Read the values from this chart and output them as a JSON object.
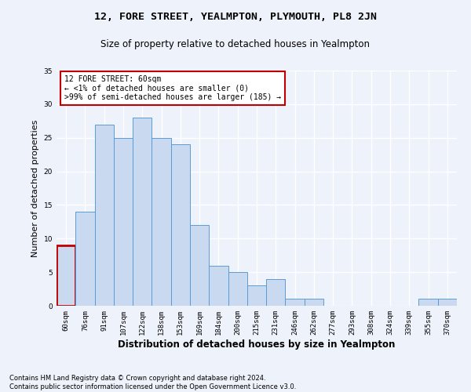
{
  "title1": "12, FORE STREET, YEALMPTON, PLYMOUTH, PL8 2JN",
  "title2": "Size of property relative to detached houses in Yealmpton",
  "xlabel": "Distribution of detached houses by size in Yealmpton",
  "ylabel": "Number of detached properties",
  "categories": [
    "60sqm",
    "76sqm",
    "91sqm",
    "107sqm",
    "122sqm",
    "138sqm",
    "153sqm",
    "169sqm",
    "184sqm",
    "200sqm",
    "215sqm",
    "231sqm",
    "246sqm",
    "262sqm",
    "277sqm",
    "293sqm",
    "308sqm",
    "324sqm",
    "339sqm",
    "355sqm",
    "370sqm"
  ],
  "values": [
    9,
    14,
    27,
    25,
    28,
    25,
    24,
    12,
    6,
    5,
    3,
    4,
    1,
    1,
    0,
    0,
    0,
    0,
    0,
    1,
    1
  ],
  "highlight_index": 0,
  "bar_color": "#c9d9f0",
  "bar_edge_color": "#5b9bd5",
  "highlight_bar_edge_color": "#c00000",
  "annotation_box_color": "#ffffff",
  "annotation_box_edge": "#c00000",
  "annotation_text": "12 FORE STREET: 60sqm\n← <1% of detached houses are smaller (0)\n>99% of semi-detached houses are larger (185) →",
  "ylim": [
    0,
    35
  ],
  "yticks": [
    0,
    5,
    10,
    15,
    20,
    25,
    30,
    35
  ],
  "footnote": "Contains HM Land Registry data © Crown copyright and database right 2024.\nContains public sector information licensed under the Open Government Licence v3.0.",
  "background_color": "#eef2fb",
  "grid_color": "#ffffff",
  "title1_fontsize": 9.5,
  "title2_fontsize": 8.5,
  "ylabel_fontsize": 8,
  "xlabel_fontsize": 8.5,
  "tick_fontsize": 6.5,
  "annotation_fontsize": 7,
  "footnote_fontsize": 6
}
